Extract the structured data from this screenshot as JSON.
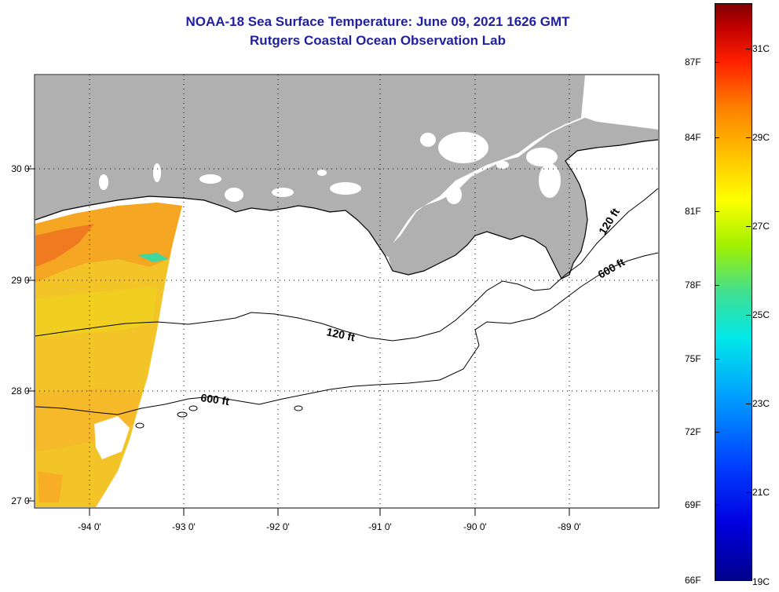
{
  "title": "NOAA-18 Sea Surface Temperature:  June 09, 2021 1626 GMT",
  "subtitle": "Rutgers Coastal Ocean Observation Lab",
  "latitude_labels": [
    "30 0'",
    "29 0'",
    "28 0'",
    "27 0'"
  ],
  "longitude_labels": [
    "-94 0'",
    "-93 0'",
    "-92 0'",
    "-91 0'",
    "-90 0'",
    "-89 0'"
  ],
  "contour_labels": {
    "c120_shelf": "120 ft",
    "c600_shelf": "600 ft",
    "c120_delta": "120 ft",
    "c600_delta": "600 ft"
  },
  "colorbar": {
    "fahrenheit_labels": [
      "87F",
      "84F",
      "81F",
      "78F",
      "75F",
      "72F",
      "69F",
      "66F"
    ],
    "celsius_labels": [
      "31C",
      "29C",
      "27C",
      "25C",
      "23C",
      "21C",
      "19C"
    ]
  },
  "colors": {
    "title": "#1f1fa0",
    "land": "#b0b0b0",
    "water_no_data": "#ffffff",
    "warm_sst": "#f5a623",
    "hot_sst": "#f07a20",
    "mid_sst": "#f2d030"
  }
}
